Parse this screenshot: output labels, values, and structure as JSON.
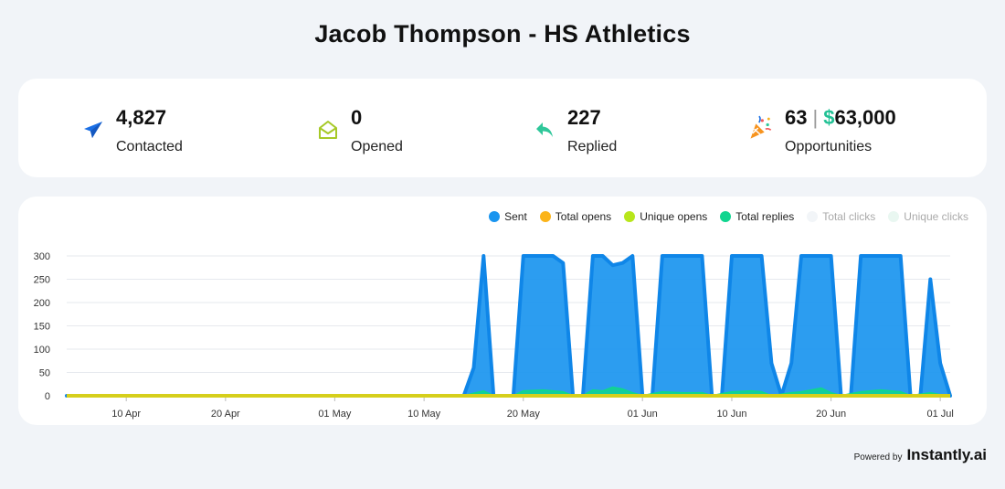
{
  "header": {
    "title": "Jacob Thompson - HS Athletics"
  },
  "stats": {
    "contacted": {
      "value": "4,827",
      "label": "Contacted"
    },
    "opened": {
      "value": "0",
      "label": "Opened"
    },
    "replied": {
      "value": "227",
      "label": "Replied"
    },
    "opportunities": {
      "count": "63",
      "separator": "|",
      "currency": "$",
      "amount": "63,000",
      "label": "Opportunities"
    }
  },
  "icons": {
    "contacted": "paper-plane-icon",
    "opened": "envelope-open-icon",
    "replied": "reply-arrow-icon",
    "opportunities": "party-popper-icon"
  },
  "colors": {
    "sent": "#1a95ef",
    "total_opens": "#fbb41a",
    "unique_opens": "#b8e61b",
    "total_replies": "#10d58f",
    "total_clicks": "#f2f5f8",
    "unique_clicks": "#e9f7f1",
    "icon_blue": "#1a6fe5",
    "icon_green_yellow": "#a6c927",
    "icon_teal": "#2fc79a"
  },
  "footer": {
    "powered_by": "Powered by",
    "brand": "Instantly.ai"
  },
  "chart_data": {
    "type": "area",
    "x_start": "2023-04-04",
    "x_end": "2023-07-02",
    "ylim": [
      0,
      300
    ],
    "yticks": [
      0,
      50,
      100,
      150,
      200,
      250,
      300
    ],
    "xtick_labels": [
      "10 Apr",
      "20 Apr",
      "01 May",
      "10 May",
      "20 May",
      "01 Jun",
      "10 Jun",
      "20 Jun",
      "01 Jul"
    ],
    "xtick_dates": [
      "2023-04-10",
      "2023-04-20",
      "2023-05-01",
      "2023-05-10",
      "2023-05-20",
      "2023-06-01",
      "2023-06-10",
      "2023-06-20",
      "2023-07-01"
    ],
    "legend": [
      {
        "key": "sent",
        "name": "Sent",
        "hidden": false
      },
      {
        "key": "total_opens",
        "name": "Total opens",
        "hidden": false
      },
      {
        "key": "unique_opens",
        "name": "Unique opens",
        "hidden": false
      },
      {
        "key": "total_replies",
        "name": "Total replies",
        "hidden": false
      },
      {
        "key": "total_clicks",
        "name": "Total clicks",
        "hidden": true
      },
      {
        "key": "unique_clicks",
        "name": "Unique clicks",
        "hidden": true
      }
    ],
    "series": [
      {
        "name": "Sent",
        "key": "sent",
        "points": [
          [
            "2023-04-04",
            0
          ],
          [
            "2023-05-14",
            0
          ],
          [
            "2023-05-15",
            60
          ],
          [
            "2023-05-16",
            300
          ],
          [
            "2023-05-17",
            0
          ],
          [
            "2023-05-18",
            0
          ],
          [
            "2023-05-19",
            0
          ],
          [
            "2023-05-20",
            300
          ],
          [
            "2023-05-21",
            300
          ],
          [
            "2023-05-22",
            300
          ],
          [
            "2023-05-23",
            300
          ],
          [
            "2023-05-24",
            285
          ],
          [
            "2023-05-25",
            0
          ],
          [
            "2023-05-26",
            0
          ],
          [
            "2023-05-27",
            300
          ],
          [
            "2023-05-28",
            300
          ],
          [
            "2023-05-29",
            280
          ],
          [
            "2023-05-30",
            285
          ],
          [
            "2023-05-31",
            300
          ],
          [
            "2023-06-01",
            0
          ],
          [
            "2023-06-02",
            0
          ],
          [
            "2023-06-03",
            300
          ],
          [
            "2023-06-04",
            300
          ],
          [
            "2023-06-05",
            300
          ],
          [
            "2023-06-06",
            300
          ],
          [
            "2023-06-07",
            300
          ],
          [
            "2023-06-08",
            0
          ],
          [
            "2023-06-09",
            0
          ],
          [
            "2023-06-10",
            300
          ],
          [
            "2023-06-11",
            300
          ],
          [
            "2023-06-12",
            300
          ],
          [
            "2023-06-13",
            300
          ],
          [
            "2023-06-14",
            70
          ],
          [
            "2023-06-15",
            0
          ],
          [
            "2023-06-16",
            70
          ],
          [
            "2023-06-17",
            300
          ],
          [
            "2023-06-18",
            300
          ],
          [
            "2023-06-19",
            300
          ],
          [
            "2023-06-20",
            300
          ],
          [
            "2023-06-21",
            0
          ],
          [
            "2023-06-22",
            0
          ],
          [
            "2023-06-23",
            300
          ],
          [
            "2023-06-24",
            300
          ],
          [
            "2023-06-25",
            300
          ],
          [
            "2023-06-26",
            300
          ],
          [
            "2023-06-27",
            300
          ],
          [
            "2023-06-28",
            0
          ],
          [
            "2023-06-29",
            0
          ],
          [
            "2023-06-30",
            250
          ],
          [
            "2023-07-01",
            70
          ],
          [
            "2023-07-02",
            0
          ]
        ]
      },
      {
        "name": "Total replies",
        "key": "total_replies",
        "points": [
          [
            "2023-04-04",
            0
          ],
          [
            "2023-05-14",
            0
          ],
          [
            "2023-05-16",
            10
          ],
          [
            "2023-05-17",
            0
          ],
          [
            "2023-05-19",
            0
          ],
          [
            "2023-05-20",
            10
          ],
          [
            "2023-05-22",
            12
          ],
          [
            "2023-05-24",
            8
          ],
          [
            "2023-05-25",
            0
          ],
          [
            "2023-05-26",
            0
          ],
          [
            "2023-05-27",
            12
          ],
          [
            "2023-05-28",
            10
          ],
          [
            "2023-05-29",
            18
          ],
          [
            "2023-05-30",
            14
          ],
          [
            "2023-05-31",
            6
          ],
          [
            "2023-06-01",
            0
          ],
          [
            "2023-06-03",
            8
          ],
          [
            "2023-06-05",
            6
          ],
          [
            "2023-06-07",
            6
          ],
          [
            "2023-06-08",
            0
          ],
          [
            "2023-06-10",
            8
          ],
          [
            "2023-06-12",
            10
          ],
          [
            "2023-06-13",
            8
          ],
          [
            "2023-06-14",
            0
          ],
          [
            "2023-06-16",
            6
          ],
          [
            "2023-06-17",
            8
          ],
          [
            "2023-06-19",
            16
          ],
          [
            "2023-06-20",
            6
          ],
          [
            "2023-06-21",
            0
          ],
          [
            "2023-06-23",
            8
          ],
          [
            "2023-06-25",
            12
          ],
          [
            "2023-06-27",
            8
          ],
          [
            "2023-06-28",
            0
          ],
          [
            "2023-06-30",
            6
          ],
          [
            "2023-07-01",
            2
          ],
          [
            "2023-07-02",
            0
          ]
        ]
      },
      {
        "name": "Total opens",
        "key": "total_opens",
        "points": [
          [
            "2023-04-04",
            0
          ],
          [
            "2023-07-02",
            0
          ]
        ]
      },
      {
        "name": "Unique opens",
        "key": "unique_opens",
        "points": [
          [
            "2023-04-04",
            0
          ],
          [
            "2023-07-02",
            0
          ]
        ]
      }
    ]
  }
}
